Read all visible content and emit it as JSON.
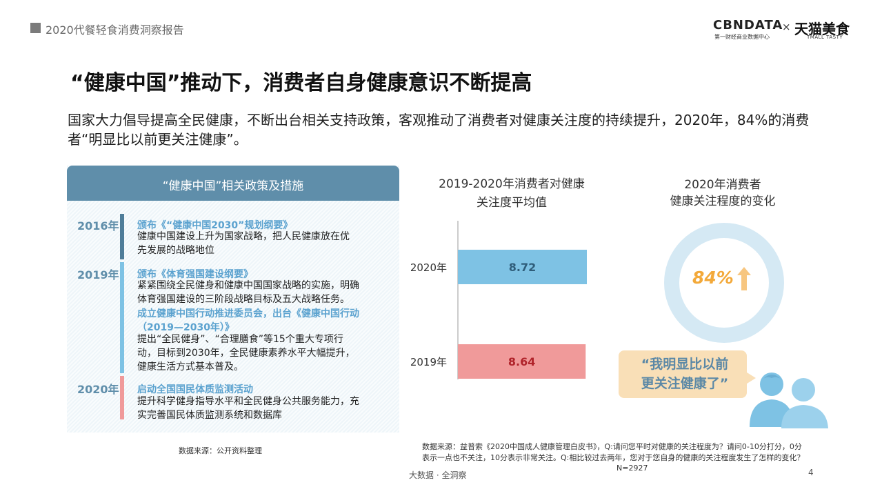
{
  "header": {
    "report_title": "2020代餐轻食消费洞察报告",
    "logo_cbn": "CBNDATA",
    "logo_cbn_sub": "第一财经商业数据中心",
    "logo_times": "×",
    "logo_tmall": "天猫美食",
    "logo_tmall_sub": "TMALL TASTY"
  },
  "headline": "“健康中国”推动下，消费者自身健康意识不断提高",
  "intro": "国家大力倡导提高全民健康，不断出台相关支持政策，客观推动了消费者对健康关注度的持续提升，2020年，84%的消费者“明显比以前更关注健康”。",
  "policy_panel": {
    "title": "“健康中国”相关政策及措施",
    "entries": [
      {
        "year": "2016年",
        "items": [
          {
            "title": "颁布《“健康中国2030”规划纲要》",
            "lines": [
              "健康中国建设上升为国家战略，把人民健康放在优",
              "先发展的战略地位"
            ]
          }
        ]
      },
      {
        "year": "2019年",
        "items": [
          {
            "title": "颁布《体育强国建设纲要》",
            "lines": [
              "紧紧围绕全民健身和健康中国国家战略的实施，明确",
              "体育强国建设的三阶段战略目标及五大战略任务。"
            ]
          },
          {
            "title_lines": [
              "成立健康中国行动推进委员会，出台《健康中国行动",
              "（2019—2030年）》"
            ],
            "lines": [
              "提出“全民健身”、“合理膳食”等15个重大专项行",
              "动，目标到2030年，全民健康素养水平大幅提升，",
              "健康生活方式基本普及。"
            ]
          }
        ]
      },
      {
        "year": "2020年",
        "items": [
          {
            "title": "启动全国国民体质监测活动",
            "lines": [
              "提升科学健身指导水平和全民健身公共服务能力，充",
              "实完善国民体质监测系统和数据库"
            ]
          }
        ]
      }
    ],
    "source": "数据来源：公开资料整理"
  },
  "chart_data": [
    {
      "type": "bar",
      "orientation": "horizontal",
      "title": "2019-2020年消费者对健康关注度平均值",
      "categories": [
        "2020年",
        "2019年"
      ],
      "values": [
        8.72,
        8.64
      ],
      "colors": [
        "#7ec2e4",
        "#f09a9a"
      ],
      "xlabel": "",
      "ylabel": "",
      "grid": false
    },
    {
      "type": "pie",
      "title": "2020年消费者健康关注程度的变化",
      "value_percent": 84,
      "value_label": "84%",
      "arrow": "up",
      "colors": [
        "#d5e9f4",
        "#f3a93a"
      ],
      "quote": [
        "“我明显比以前",
        "更关注健康了”"
      ]
    }
  ],
  "bar_chart_title_lines": [
    "2019-2020年消费者对健康",
    "关注度平均值"
  ],
  "donut_title_lines": [
    "2020年消费者",
    "健康关注程度的变化"
  ],
  "source_right": {
    "lines": [
      "数据来源：益普索《2020中国成人健康管理白皮书》，Q:请问您平时对健康的关注程度为？请问0-10分打分，0分",
      "表示一点也不关注，10分表示非常关注。Q:相比较过去两年，您对于您自身的健康的关注程度发生了怎样的变化？"
    ],
    "n": "N=2927"
  },
  "footer": {
    "text": "大数据 · 全洞察",
    "page": "4"
  }
}
